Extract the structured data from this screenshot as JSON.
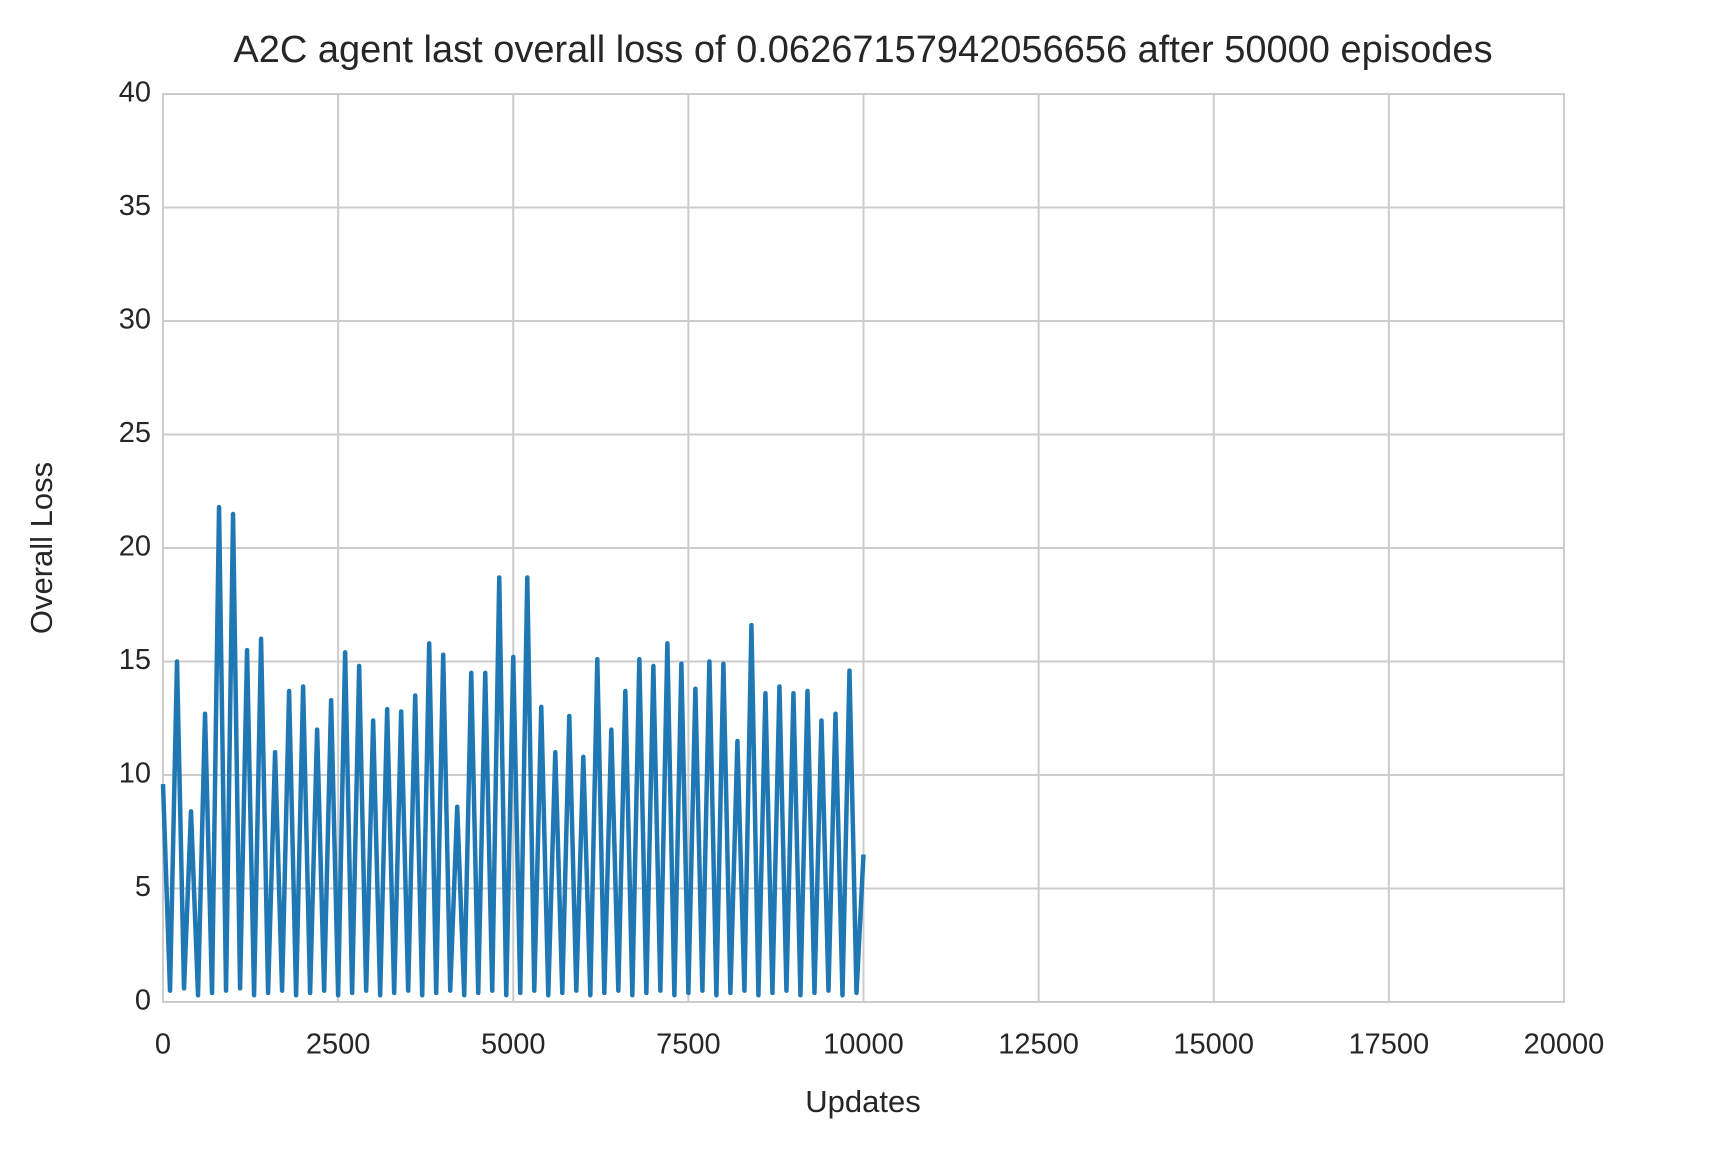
{
  "chart_data": {
    "type": "line",
    "title": "A2C agent last overall loss of 0.06267157942056656 after 50000 episodes",
    "xlabel": "Updates",
    "ylabel": "Overall Loss",
    "xlim": [
      0,
      20000
    ],
    "ylim": [
      0,
      40
    ],
    "xticks": [
      0,
      2500,
      5000,
      7500,
      10000,
      12500,
      15000,
      17500,
      20000
    ],
    "yticks": [
      0,
      5,
      10,
      15,
      20,
      25,
      30,
      35,
      40
    ],
    "grid": true,
    "x": [
      0,
      100,
      200,
      300,
      400,
      500,
      600,
      700,
      800,
      900,
      1000,
      1100,
      1200,
      1300,
      1400,
      1500,
      1600,
      1700,
      1800,
      1900,
      2000,
      2100,
      2200,
      2300,
      2400,
      2500,
      2600,
      2700,
      2800,
      2900,
      3000,
      3100,
      3200,
      3300,
      3400,
      3500,
      3600,
      3700,
      3800,
      3900,
      4000,
      4100,
      4200,
      4300,
      4400,
      4500,
      4600,
      4700,
      4800,
      4900,
      5000,
      5100,
      5200,
      5300,
      5400,
      5500,
      5600,
      5700,
      5800,
      5900,
      6000,
      6100,
      6200,
      6300,
      6400,
      6500,
      6600,
      6700,
      6800,
      6900,
      7000,
      7100,
      7200,
      7300,
      7400,
      7500,
      7600,
      7700,
      7800,
      7900,
      8000,
      8100,
      8200,
      8300,
      8400,
      8500,
      8600,
      8700,
      8800,
      8900,
      9000,
      9100,
      9200,
      9300,
      9400,
      9500,
      9600,
      9700,
      9800,
      9900,
      10000
    ],
    "series": [
      {
        "name": "Overall Loss",
        "color": "#1f77b4",
        "values": [
          9.6,
          0.5,
          15.0,
          0.6,
          8.4,
          0.3,
          12.7,
          0.4,
          21.8,
          0.5,
          21.5,
          0.6,
          15.5,
          0.3,
          16.0,
          0.4,
          11.0,
          0.5,
          13.7,
          0.3,
          13.9,
          0.4,
          12.0,
          0.5,
          13.3,
          0.3,
          15.4,
          0.4,
          14.8,
          0.5,
          12.4,
          0.3,
          12.9,
          0.4,
          12.8,
          0.5,
          13.5,
          0.3,
          15.8,
          0.4,
          15.3,
          0.5,
          8.6,
          0.3,
          14.5,
          0.4,
          14.5,
          0.5,
          18.7,
          0.3,
          15.2,
          0.4,
          18.7,
          0.5,
          13.0,
          0.3,
          11.0,
          0.4,
          12.6,
          0.5,
          10.8,
          0.3,
          15.1,
          0.4,
          12.0,
          0.5,
          13.7,
          0.3,
          15.1,
          0.4,
          14.8,
          0.5,
          15.8,
          0.3,
          14.9,
          0.4,
          13.8,
          0.5,
          15.0,
          0.3,
          14.9,
          0.4,
          11.5,
          0.5,
          16.6,
          0.3,
          13.6,
          0.4,
          13.9,
          0.5,
          13.6,
          0.3,
          13.7,
          0.4,
          12.4,
          0.5,
          12.7,
          0.3,
          14.6,
          0.4,
          6.5
        ]
      }
    ]
  }
}
